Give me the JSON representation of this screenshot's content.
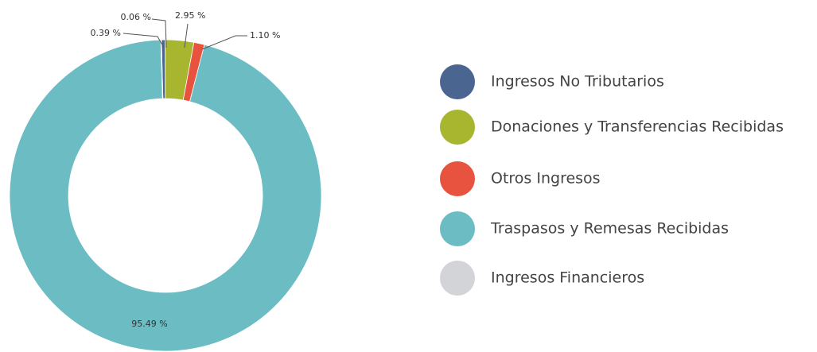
{
  "chart_data": {
    "type": "donut",
    "categories": [
      "Ingresos No Tributarios",
      "Donaciones y Transferencias Recibidas",
      "Otros Ingresos",
      "Traspasos y Remesas Recibidas",
      "Ingresos Financieros"
    ],
    "values": [
      0.39,
      2.95,
      1.1,
      95.49,
      0.06
    ],
    "value_labels": [
      "0.39 %",
      "2.95 %",
      "1.10 %",
      "95.49 %",
      "0.06 %"
    ],
    "colors": [
      "#4a6590",
      "#a8b52e",
      "#e8533f",
      "#6bbdc3",
      "#d3d4d8"
    ],
    "legend": "right"
  }
}
